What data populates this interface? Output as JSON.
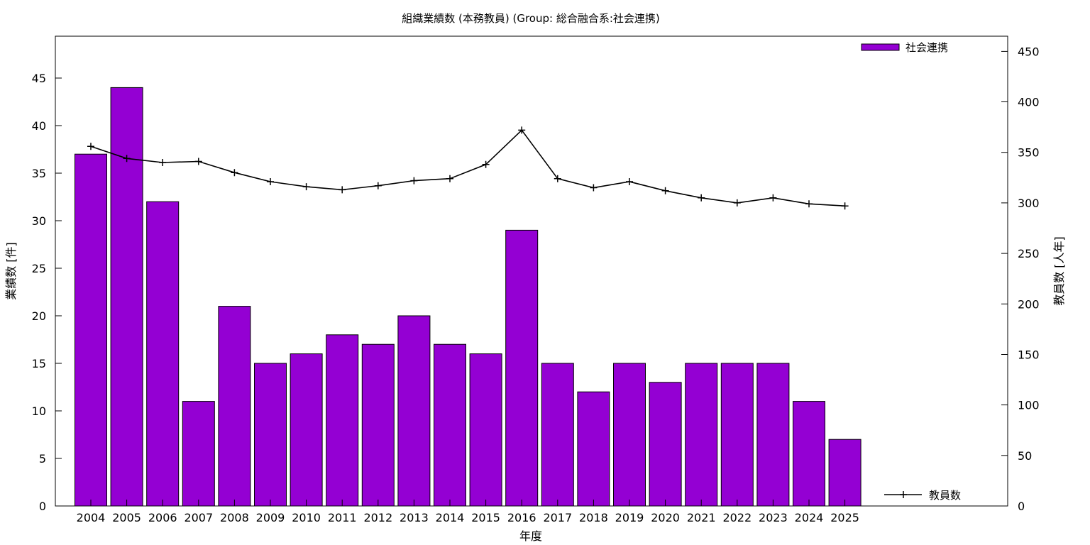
{
  "chart_data": {
    "type": "bar",
    "title": "組織業績数 (本務教員) (Group: 総合融合系:社会連携)",
    "xlabel": "年度",
    "ylabel": "業績数 [件]",
    "y2label": "教員数 [人年]",
    "categories": [
      "2004",
      "2005",
      "2006",
      "2007",
      "2008",
      "2009",
      "2010",
      "2011",
      "2012",
      "2013",
      "2014",
      "2015",
      "2016",
      "2017",
      "2018",
      "2019",
      "2020",
      "2021",
      "2022",
      "2023",
      "2024",
      "2025"
    ],
    "series": [
      {
        "name": "社会連携",
        "type": "bar",
        "axis": "left",
        "color": "#9400d3",
        "values": [
          37,
          44,
          32,
          11,
          21,
          15,
          16,
          18,
          17,
          20,
          17,
          16,
          29,
          15,
          12,
          15,
          13,
          15,
          15,
          15,
          11,
          7
        ]
      },
      {
        "name": "教員数",
        "type": "line",
        "axis": "right",
        "color": "#000000",
        "values": [
          356,
          344,
          340,
          341,
          330,
          321,
          316,
          313,
          317,
          322,
          324,
          338,
          372,
          324,
          315,
          321,
          312,
          305,
          300,
          305,
          299,
          297
        ]
      }
    ],
    "ylim": [
      0,
      49.4
    ],
    "yticks": [
      0,
      5,
      10,
      15,
      20,
      25,
      30,
      35,
      40,
      45
    ],
    "y2lim": [
      0,
      465
    ],
    "y2ticks": [
      0,
      50,
      100,
      150,
      200,
      250,
      300,
      350,
      400,
      450
    ],
    "grid": false,
    "legend_placement": "top-right (bars), bottom-right (line)"
  }
}
